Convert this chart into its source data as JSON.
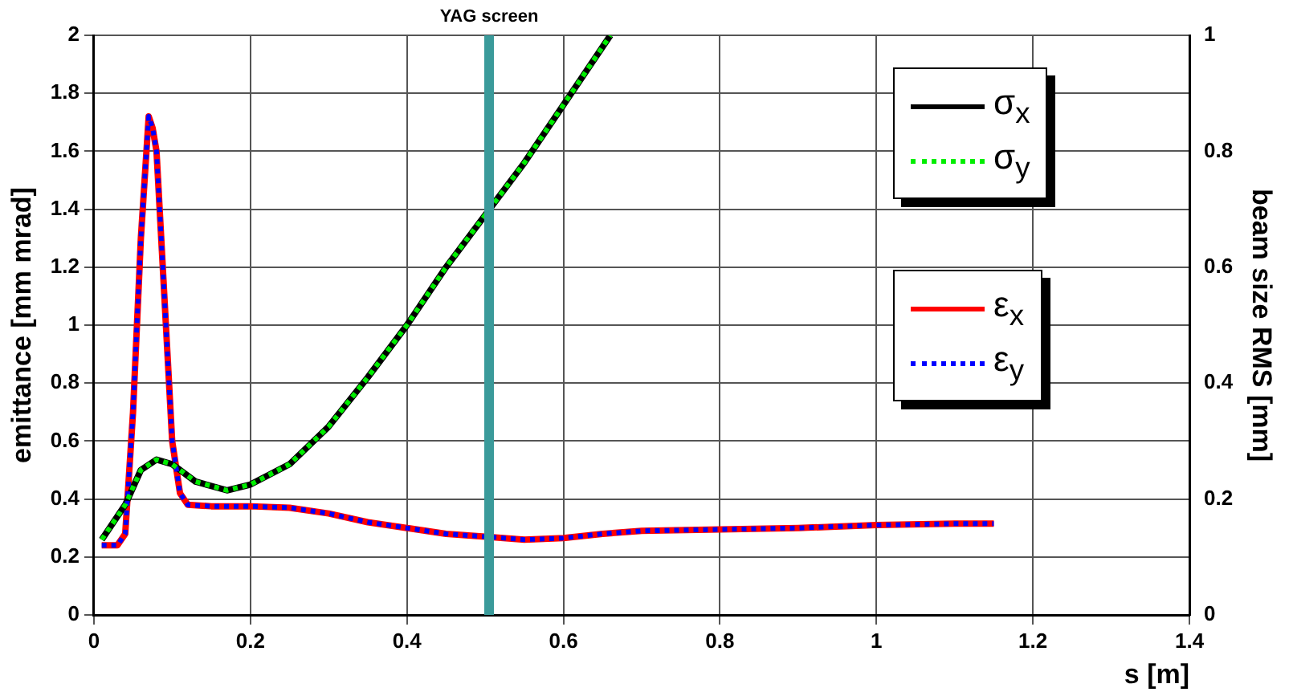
{
  "chart_data": {
    "type": "line",
    "xlabel": "s [m]",
    "ylabel": "emittance [mm mrad]",
    "y2label": "beam size RMS [mm]",
    "xlim": [
      0,
      1.4
    ],
    "xticks": [
      0,
      0.2,
      0.4,
      0.6,
      0.8,
      1,
      1.2,
      1.4
    ],
    "ylim": [
      0,
      2
    ],
    "yticks": [
      0,
      0.2,
      0.4,
      0.6,
      0.8,
      1,
      1.2,
      1.4,
      1.6,
      1.8,
      2
    ],
    "y2lim": [
      0,
      1
    ],
    "y2ticks": [
      0,
      0.2,
      0.4,
      0.6,
      0.8,
      1
    ],
    "grid": true,
    "legend": "right",
    "marker": "none",
    "ref_lines": [
      {
        "axis": "x",
        "value": 0.505,
        "label": "YAG screen",
        "color": "#3a9a9a"
      }
    ],
    "series": [
      {
        "name": "σ$_{x}$",
        "color": "#000000",
        "axis": "y2",
        "line_style": "solid",
        "x": [
          0.01,
          0.04,
          0.06,
          0.08,
          0.1,
          0.13,
          0.17,
          0.2,
          0.25,
          0.3,
          0.35,
          0.4,
          0.45,
          0.5,
          0.55,
          0.6,
          0.66
        ],
        "values": [
          0.13,
          0.19,
          0.25,
          0.268,
          0.26,
          0.23,
          0.215,
          0.225,
          0.26,
          0.325,
          0.41,
          0.5,
          0.6,
          0.69,
          0.78,
          0.88,
          1.0
        ]
      },
      {
        "name": "σ$_{y}$",
        "color": "#00ee00",
        "axis": "y2",
        "line_style": "dotted",
        "x": [
          0.01,
          0.04,
          0.06,
          0.08,
          0.1,
          0.13,
          0.17,
          0.2,
          0.25,
          0.3,
          0.35,
          0.4,
          0.45,
          0.5,
          0.55,
          0.6,
          0.66
        ],
        "values": [
          0.13,
          0.19,
          0.25,
          0.268,
          0.26,
          0.23,
          0.215,
          0.225,
          0.26,
          0.325,
          0.41,
          0.5,
          0.6,
          0.69,
          0.78,
          0.88,
          1.0
        ]
      },
      {
        "name": "ε$_{x}$",
        "color": "#ff0000",
        "line_style": "solid",
        "x": [
          0.01,
          0.03,
          0.04,
          0.05,
          0.06,
          0.07,
          0.075,
          0.08,
          0.09,
          0.1,
          0.11,
          0.12,
          0.15,
          0.2,
          0.25,
          0.3,
          0.35,
          0.4,
          0.45,
          0.5,
          0.55,
          0.6,
          0.65,
          0.7,
          0.8,
          0.9,
          1.0,
          1.1,
          1.15
        ],
        "values": [
          0.24,
          0.24,
          0.28,
          0.7,
          1.3,
          1.72,
          1.68,
          1.6,
          1.1,
          0.6,
          0.42,
          0.38,
          0.375,
          0.375,
          0.37,
          0.35,
          0.32,
          0.3,
          0.28,
          0.27,
          0.26,
          0.265,
          0.28,
          0.29,
          0.295,
          0.3,
          0.31,
          0.315,
          0.315
        ]
      },
      {
        "name": "ε$_{y}$",
        "color": "#0000ff",
        "line_style": "dotted",
        "x": [
          0.01,
          0.03,
          0.04,
          0.05,
          0.06,
          0.07,
          0.075,
          0.08,
          0.09,
          0.1,
          0.11,
          0.12,
          0.15,
          0.2,
          0.25,
          0.3,
          0.35,
          0.4,
          0.45,
          0.5,
          0.55,
          0.6,
          0.65,
          0.7,
          0.8,
          0.9,
          1.0,
          1.1,
          1.15
        ],
        "values": [
          0.24,
          0.24,
          0.28,
          0.7,
          1.3,
          1.72,
          1.68,
          1.6,
          1.1,
          0.6,
          0.42,
          0.38,
          0.375,
          0.375,
          0.37,
          0.35,
          0.32,
          0.3,
          0.28,
          0.27,
          0.26,
          0.265,
          0.28,
          0.29,
          0.295,
          0.3,
          0.31,
          0.315,
          0.315
        ]
      }
    ]
  }
}
